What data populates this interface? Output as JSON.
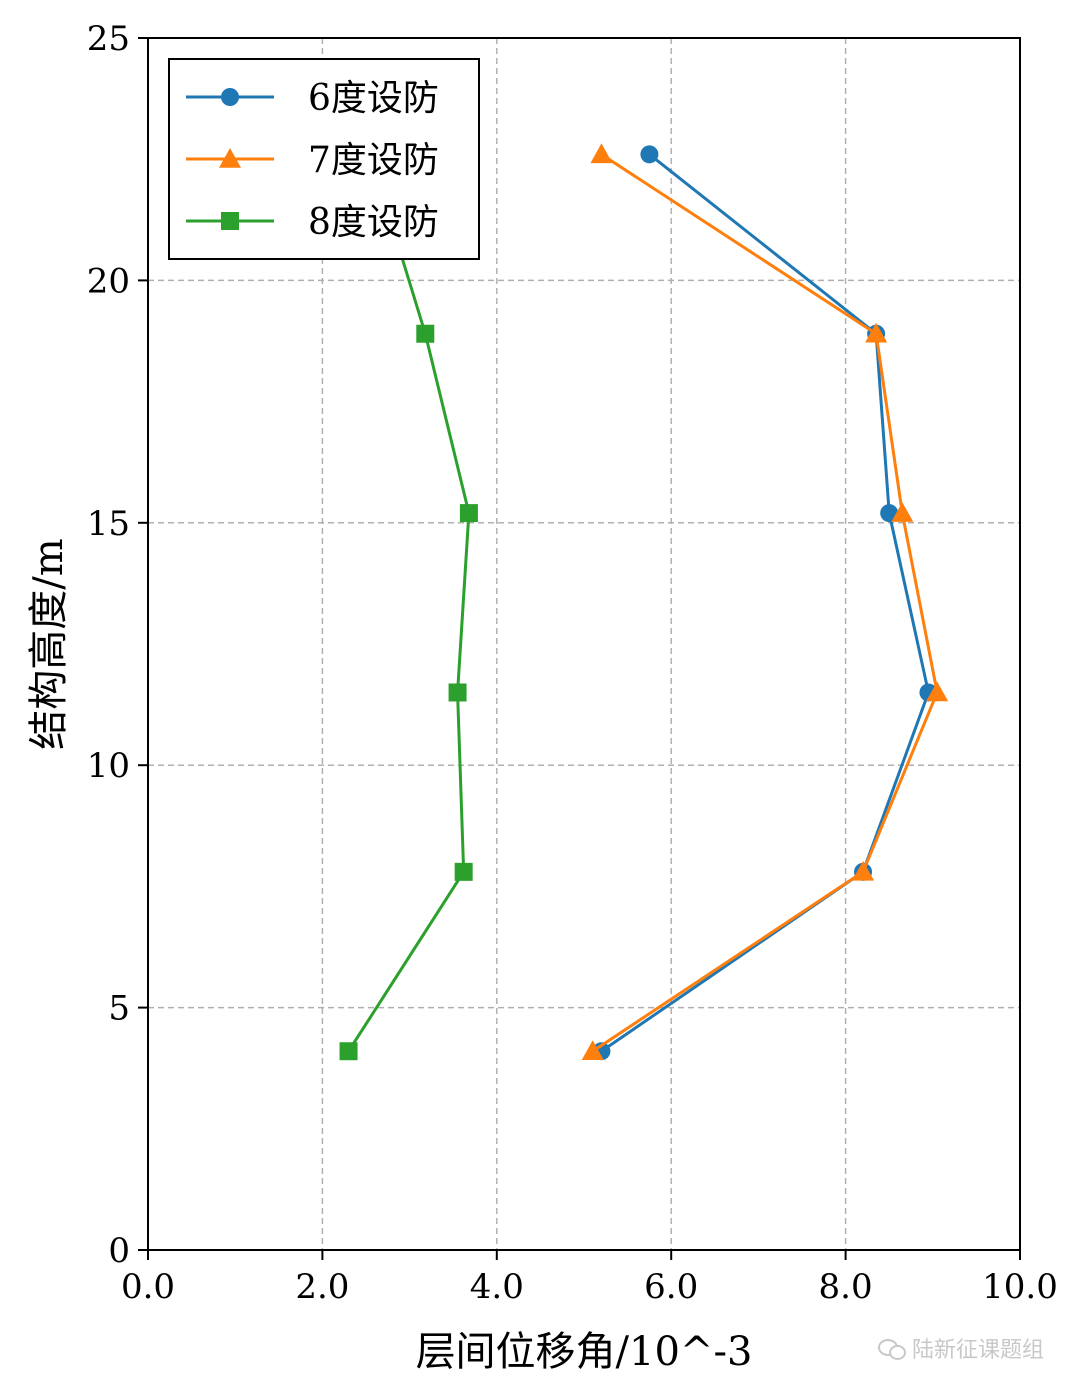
{
  "chart_data": {
    "type": "line",
    "title": "",
    "xlabel": "层间位移角/10^-3",
    "ylabel": "结构高度/m",
    "xlim": [
      0,
      10
    ],
    "ylim": [
      0,
      25
    ],
    "xticks": [
      "0.0",
      "2.0",
      "4.0",
      "6.0",
      "8.0",
      "10.0"
    ],
    "yticks": [
      "0",
      "5",
      "10",
      "15",
      "20",
      "25"
    ],
    "grid": true,
    "legend_position": "top-left",
    "series": [
      {
        "name": "6度设防",
        "color": "#1f77b4",
        "marker": "circle",
        "x": [
          5.2,
          8.2,
          8.95,
          8.5,
          8.35,
          5.75
        ],
        "y": [
          4.1,
          7.8,
          11.5,
          15.2,
          18.9,
          22.6
        ]
      },
      {
        "name": "7度设防",
        "color": "#ff7f0e",
        "marker": "triangle",
        "x": [
          5.1,
          8.2,
          9.05,
          8.65,
          8.35,
          5.2
        ],
        "y": [
          4.1,
          7.8,
          11.5,
          15.2,
          18.9,
          22.6
        ]
      },
      {
        "name": "8度设防",
        "color": "#2ca02c",
        "marker": "square",
        "x": [
          2.3,
          3.62,
          3.55,
          3.68,
          3.18,
          2.55
        ],
        "y": [
          4.1,
          7.8,
          11.5,
          15.2,
          18.9,
          22.6
        ]
      }
    ]
  },
  "watermark": "陆新征课题组"
}
